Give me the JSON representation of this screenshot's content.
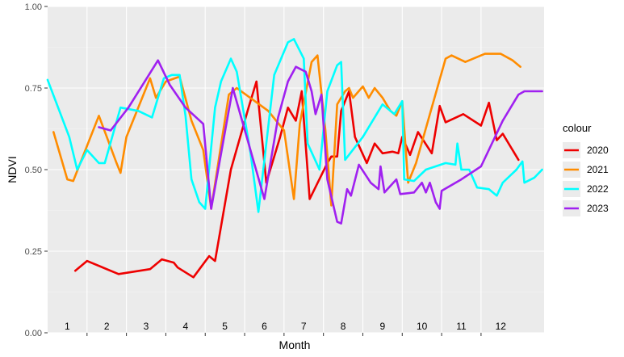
{
  "chart_data": {
    "type": "line",
    "xlabel": "Month",
    "ylabel": "NDVI",
    "xlim": [
      0,
      12
    ],
    "ylim": [
      0,
      1
    ],
    "y_ticks": [
      0.0,
      0.25,
      0.5,
      0.75,
      1.0
    ],
    "y_tick_labels": [
      "0.00",
      "0.25",
      "0.50",
      "0.75",
      "1.00"
    ],
    "x_tick_positions": [
      1,
      2,
      3,
      4,
      5,
      6,
      7,
      8,
      9,
      10,
      11
    ],
    "month_labels": [
      {
        "label": "1",
        "x": 0.5
      },
      {
        "label": "2",
        "x": 1.5
      },
      {
        "label": "3",
        "x": 2.5
      },
      {
        "label": "4",
        "x": 3.5
      },
      {
        "label": "5",
        "x": 4.5
      },
      {
        "label": "6",
        "x": 5.5
      },
      {
        "label": "7",
        "x": 6.5
      },
      {
        "label": "8",
        "x": 7.5
      },
      {
        "label": "9",
        "x": 8.5
      },
      {
        "label": "10",
        "x": 9.5
      },
      {
        "label": "11",
        "x": 10.5
      },
      {
        "label": "12",
        "x": 11.5
      }
    ],
    "grid": true,
    "legend_title": "colour",
    "legend_position": "right",
    "series": [
      {
        "name": "2020",
        "color": "#ee0000",
        "points": [
          [
            0.7,
            0.19
          ],
          [
            1.0,
            0.22
          ],
          [
            1.8,
            0.18
          ],
          [
            2.6,
            0.195
          ],
          [
            2.9,
            0.225
          ],
          [
            3.2,
            0.215
          ],
          [
            3.3,
            0.2
          ],
          [
            3.7,
            0.17
          ],
          [
            4.1,
            0.235
          ],
          [
            4.25,
            0.22
          ],
          [
            4.65,
            0.5
          ],
          [
            5.1,
            0.69
          ],
          [
            5.3,
            0.77
          ],
          [
            5.55,
            0.46
          ],
          [
            5.9,
            0.6
          ],
          [
            6.1,
            0.69
          ],
          [
            6.3,
            0.65
          ],
          [
            6.45,
            0.74
          ],
          [
            6.65,
            0.41
          ],
          [
            7.1,
            0.52
          ],
          [
            7.2,
            0.54
          ],
          [
            7.35,
            0.54
          ],
          [
            7.45,
            0.68
          ],
          [
            7.65,
            0.74
          ],
          [
            7.8,
            0.6
          ],
          [
            8.1,
            0.52
          ],
          [
            8.3,
            0.58
          ],
          [
            8.5,
            0.55
          ],
          [
            8.75,
            0.555
          ],
          [
            8.9,
            0.55
          ],
          [
            9.0,
            0.6
          ],
          [
            9.2,
            0.545
          ],
          [
            9.4,
            0.615
          ],
          [
            9.75,
            0.55
          ],
          [
            9.95,
            0.695
          ],
          [
            10.1,
            0.645
          ],
          [
            10.55,
            0.67
          ],
          [
            11.0,
            0.635
          ],
          [
            11.2,
            0.705
          ],
          [
            11.4,
            0.59
          ],
          [
            11.55,
            0.61
          ],
          [
            11.95,
            0.53
          ]
        ]
      },
      {
        "name": "2021",
        "color": "#ff8c00",
        "points": [
          [
            0.15,
            0.615
          ],
          [
            0.5,
            0.47
          ],
          [
            0.65,
            0.465
          ],
          [
            1.3,
            0.665
          ],
          [
            1.75,
            0.52
          ],
          [
            1.85,
            0.49
          ],
          [
            2.0,
            0.6
          ],
          [
            2.6,
            0.78
          ],
          [
            2.75,
            0.72
          ],
          [
            3.0,
            0.77
          ],
          [
            3.35,
            0.785
          ],
          [
            3.65,
            0.65
          ],
          [
            3.95,
            0.56
          ],
          [
            4.15,
            0.38
          ],
          [
            4.6,
            0.73
          ],
          [
            4.8,
            0.75
          ],
          [
            5.6,
            0.68
          ],
          [
            6.0,
            0.62
          ],
          [
            6.25,
            0.41
          ],
          [
            6.4,
            0.64
          ],
          [
            6.7,
            0.83
          ],
          [
            6.85,
            0.85
          ],
          [
            7.05,
            0.62
          ],
          [
            7.2,
            0.39
          ],
          [
            7.35,
            0.7
          ],
          [
            7.55,
            0.74
          ],
          [
            7.65,
            0.75
          ],
          [
            7.75,
            0.72
          ],
          [
            8.0,
            0.755
          ],
          [
            8.15,
            0.72
          ],
          [
            8.3,
            0.75
          ],
          [
            8.5,
            0.72
          ],
          [
            8.7,
            0.68
          ],
          [
            8.85,
            0.665
          ],
          [
            9.0,
            0.71
          ],
          [
            9.15,
            0.46
          ],
          [
            9.35,
            0.52
          ],
          [
            10.1,
            0.84
          ],
          [
            10.25,
            0.85
          ],
          [
            10.6,
            0.83
          ],
          [
            11.1,
            0.855
          ],
          [
            11.5,
            0.855
          ],
          [
            11.8,
            0.835
          ],
          [
            12.0,
            0.815
          ]
        ]
      },
      {
        "name": "2022",
        "color": "#00ffff",
        "points": [
          [
            0.0,
            0.775
          ],
          [
            0.55,
            0.6
          ],
          [
            0.75,
            0.5
          ],
          [
            1.0,
            0.56
          ],
          [
            1.3,
            0.52
          ],
          [
            1.45,
            0.52
          ],
          [
            1.85,
            0.69
          ],
          [
            2.3,
            0.68
          ],
          [
            2.65,
            0.66
          ],
          [
            2.95,
            0.78
          ],
          [
            3.15,
            0.79
          ],
          [
            3.35,
            0.79
          ],
          [
            3.5,
            0.665
          ],
          [
            3.65,
            0.47
          ],
          [
            3.85,
            0.4
          ],
          [
            4.0,
            0.38
          ],
          [
            4.25,
            0.69
          ],
          [
            4.4,
            0.77
          ],
          [
            4.65,
            0.84
          ],
          [
            4.8,
            0.8
          ],
          [
            5.15,
            0.55
          ],
          [
            5.35,
            0.37
          ],
          [
            5.75,
            0.79
          ],
          [
            6.1,
            0.89
          ],
          [
            6.25,
            0.9
          ],
          [
            6.5,
            0.84
          ],
          [
            6.6,
            0.58
          ],
          [
            6.9,
            0.5
          ],
          [
            7.1,
            0.74
          ],
          [
            7.35,
            0.82
          ],
          [
            7.45,
            0.83
          ],
          [
            7.55,
            0.53
          ],
          [
            8.0,
            0.6
          ],
          [
            8.5,
            0.7
          ],
          [
            8.8,
            0.67
          ],
          [
            9.0,
            0.71
          ],
          [
            9.05,
            0.47
          ],
          [
            9.3,
            0.465
          ],
          [
            9.6,
            0.5
          ],
          [
            10.1,
            0.52
          ],
          [
            10.35,
            0.515
          ],
          [
            10.4,
            0.58
          ],
          [
            10.5,
            0.5
          ],
          [
            10.7,
            0.5
          ],
          [
            10.9,
            0.445
          ],
          [
            11.2,
            0.44
          ],
          [
            11.4,
            0.42
          ],
          [
            11.55,
            0.46
          ],
          [
            11.9,
            0.5
          ],
          [
            12.05,
            0.525
          ],
          [
            12.1,
            0.46
          ],
          [
            12.35,
            0.475
          ],
          [
            12.55,
            0.5
          ]
        ]
      },
      {
        "name": "2023",
        "color": "#a020f0",
        "points": [
          [
            1.3,
            0.63
          ],
          [
            1.6,
            0.62
          ],
          [
            2.05,
            0.69
          ],
          [
            2.8,
            0.835
          ],
          [
            3.1,
            0.76
          ],
          [
            3.5,
            0.69
          ],
          [
            3.95,
            0.64
          ],
          [
            4.15,
            0.38
          ],
          [
            4.7,
            0.75
          ],
          [
            5.5,
            0.41
          ],
          [
            5.85,
            0.66
          ],
          [
            6.1,
            0.77
          ],
          [
            6.3,
            0.815
          ],
          [
            6.55,
            0.8
          ],
          [
            6.7,
            0.74
          ],
          [
            6.8,
            0.67
          ],
          [
            6.95,
            0.73
          ],
          [
            7.1,
            0.47
          ],
          [
            7.35,
            0.34
          ],
          [
            7.45,
            0.335
          ],
          [
            7.6,
            0.44
          ],
          [
            7.7,
            0.42
          ],
          [
            7.9,
            0.515
          ],
          [
            8.2,
            0.46
          ],
          [
            8.4,
            0.44
          ],
          [
            8.45,
            0.51
          ],
          [
            8.55,
            0.43
          ],
          [
            8.85,
            0.47
          ],
          [
            8.95,
            0.425
          ],
          [
            9.3,
            0.43
          ],
          [
            9.5,
            0.46
          ],
          [
            9.6,
            0.43
          ],
          [
            9.7,
            0.46
          ],
          [
            9.85,
            0.4
          ],
          [
            9.95,
            0.38
          ],
          [
            10.0,
            0.435
          ],
          [
            10.5,
            0.47
          ],
          [
            11.0,
            0.51
          ],
          [
            11.55,
            0.65
          ],
          [
            11.95,
            0.73
          ],
          [
            12.1,
            0.74
          ],
          [
            12.55,
            0.74
          ]
        ]
      }
    ]
  }
}
